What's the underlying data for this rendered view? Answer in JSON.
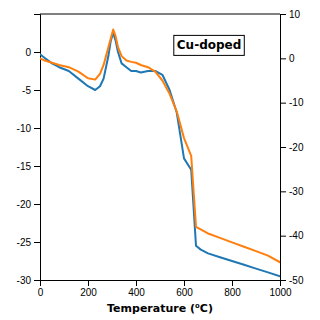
{
  "chart_data": {
    "type": "line",
    "title": "Cu-doped",
    "xlabel": "Temperature (⁰C)",
    "xlim": [
      0,
      1000
    ],
    "xticks": [
      0,
      200,
      400,
      600,
      800,
      1000
    ],
    "ylim": [
      -30,
      5
    ],
    "yticks": [
      0,
      -5,
      -10,
      -15,
      -20,
      -25,
      -30
    ],
    "y2lim": [
      -50,
      10
    ],
    "y2ticks": [
      10,
      0,
      -10,
      -20,
      -30,
      -40,
      -50
    ],
    "grid": false,
    "series": [
      {
        "x": [
          0,
          20,
          50,
          80,
          120,
          160,
          200,
          230,
          250,
          265,
          275,
          285,
          295,
          305,
          315,
          325,
          340,
          360,
          380,
          400,
          420,
          450,
          480,
          510,
          540,
          570,
          600,
          630,
          650,
          670,
          700,
          750,
          800,
          850,
          900,
          950,
          1000
        ],
        "values": [
          -0.3,
          -0.8,
          -1.5,
          -2.0,
          -2.5,
          -3.5,
          -4.5,
          -5.0,
          -4.5,
          -3.5,
          -2.0,
          -0.5,
          1.5,
          2.5,
          1.5,
          0.0,
          -1.5,
          -2.0,
          -2.5,
          -2.5,
          -2.7,
          -2.5,
          -2.5,
          -3.0,
          -5.0,
          -8.0,
          -14.0,
          -15.5,
          -25.5,
          -26.0,
          -26.5,
          -27.0,
          -27.5,
          -28.0,
          -28.5,
          -29.0,
          -29.5
        ]
      },
      {
        "axis": "y2",
        "x": [
          0,
          20,
          50,
          80,
          120,
          160,
          200,
          230,
          250,
          265,
          275,
          285,
          295,
          305,
          315,
          325,
          340,
          360,
          380,
          400,
          420,
          450,
          480,
          510,
          540,
          570,
          600,
          630,
          650,
          700,
          750,
          800,
          850,
          900,
          950,
          1000
        ],
        "values": [
          0.0,
          -0.5,
          -1.0,
          -1.5,
          -2.0,
          -3.0,
          -4.5,
          -4.8,
          -3.5,
          -1.5,
          0.5,
          2.5,
          4.5,
          6.5,
          5.0,
          2.5,
          0.5,
          -0.5,
          -0.8,
          -1.0,
          -1.5,
          -2.0,
          -3.0,
          -5.0,
          -8.0,
          -12.0,
          -18.0,
          -22.0,
          -38.0,
          -39.5,
          -40.5,
          -41.5,
          -42.5,
          -43.5,
          -44.5,
          -46.0
        ]
      }
    ]
  }
}
